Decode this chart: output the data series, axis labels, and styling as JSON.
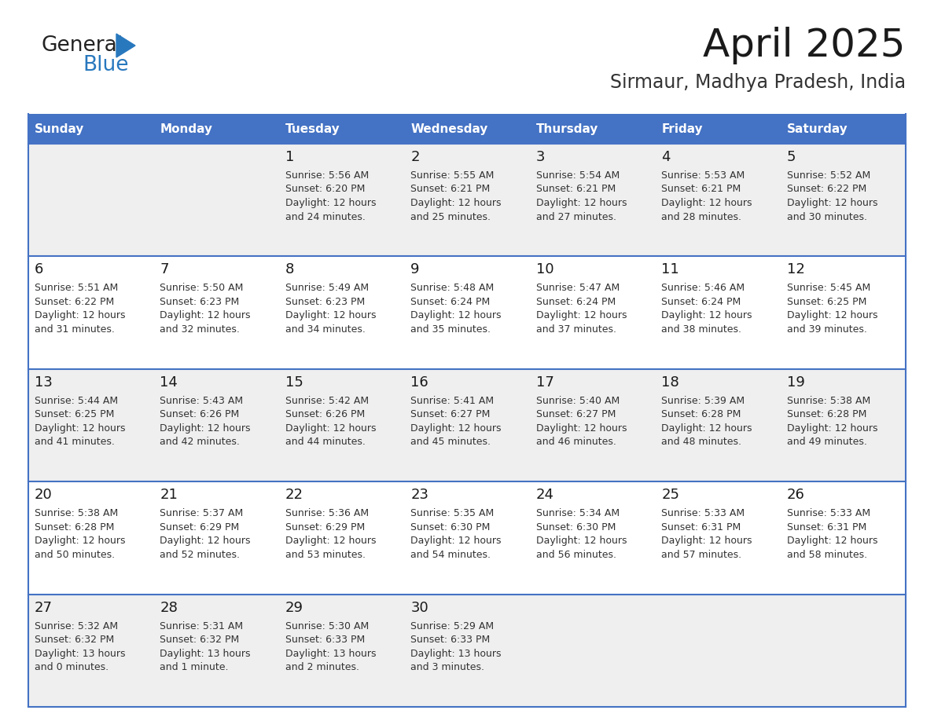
{
  "title": "April 2025",
  "subtitle": "Sirmaur, Madhya Pradesh, India",
  "days_of_week": [
    "Sunday",
    "Monday",
    "Tuesday",
    "Wednesday",
    "Thursday",
    "Friday",
    "Saturday"
  ],
  "header_bg": "#4472C4",
  "header_text_color": "#FFFFFF",
  "row_bg_even": "#EFEFEF",
  "row_bg_odd": "#FFFFFF",
  "cell_text_color": "#333333",
  "border_color": "#4472C4",
  "calendar_data": [
    [
      {
        "day": "",
        "info": ""
      },
      {
        "day": "",
        "info": ""
      },
      {
        "day": "1",
        "info": "Sunrise: 5:56 AM\nSunset: 6:20 PM\nDaylight: 12 hours\nand 24 minutes."
      },
      {
        "day": "2",
        "info": "Sunrise: 5:55 AM\nSunset: 6:21 PM\nDaylight: 12 hours\nand 25 minutes."
      },
      {
        "day": "3",
        "info": "Sunrise: 5:54 AM\nSunset: 6:21 PM\nDaylight: 12 hours\nand 27 minutes."
      },
      {
        "day": "4",
        "info": "Sunrise: 5:53 AM\nSunset: 6:21 PM\nDaylight: 12 hours\nand 28 minutes."
      },
      {
        "day": "5",
        "info": "Sunrise: 5:52 AM\nSunset: 6:22 PM\nDaylight: 12 hours\nand 30 minutes."
      }
    ],
    [
      {
        "day": "6",
        "info": "Sunrise: 5:51 AM\nSunset: 6:22 PM\nDaylight: 12 hours\nand 31 minutes."
      },
      {
        "day": "7",
        "info": "Sunrise: 5:50 AM\nSunset: 6:23 PM\nDaylight: 12 hours\nand 32 minutes."
      },
      {
        "day": "8",
        "info": "Sunrise: 5:49 AM\nSunset: 6:23 PM\nDaylight: 12 hours\nand 34 minutes."
      },
      {
        "day": "9",
        "info": "Sunrise: 5:48 AM\nSunset: 6:24 PM\nDaylight: 12 hours\nand 35 minutes."
      },
      {
        "day": "10",
        "info": "Sunrise: 5:47 AM\nSunset: 6:24 PM\nDaylight: 12 hours\nand 37 minutes."
      },
      {
        "day": "11",
        "info": "Sunrise: 5:46 AM\nSunset: 6:24 PM\nDaylight: 12 hours\nand 38 minutes."
      },
      {
        "day": "12",
        "info": "Sunrise: 5:45 AM\nSunset: 6:25 PM\nDaylight: 12 hours\nand 39 minutes."
      }
    ],
    [
      {
        "day": "13",
        "info": "Sunrise: 5:44 AM\nSunset: 6:25 PM\nDaylight: 12 hours\nand 41 minutes."
      },
      {
        "day": "14",
        "info": "Sunrise: 5:43 AM\nSunset: 6:26 PM\nDaylight: 12 hours\nand 42 minutes."
      },
      {
        "day": "15",
        "info": "Sunrise: 5:42 AM\nSunset: 6:26 PM\nDaylight: 12 hours\nand 44 minutes."
      },
      {
        "day": "16",
        "info": "Sunrise: 5:41 AM\nSunset: 6:27 PM\nDaylight: 12 hours\nand 45 minutes."
      },
      {
        "day": "17",
        "info": "Sunrise: 5:40 AM\nSunset: 6:27 PM\nDaylight: 12 hours\nand 46 minutes."
      },
      {
        "day": "18",
        "info": "Sunrise: 5:39 AM\nSunset: 6:28 PM\nDaylight: 12 hours\nand 48 minutes."
      },
      {
        "day": "19",
        "info": "Sunrise: 5:38 AM\nSunset: 6:28 PM\nDaylight: 12 hours\nand 49 minutes."
      }
    ],
    [
      {
        "day": "20",
        "info": "Sunrise: 5:38 AM\nSunset: 6:28 PM\nDaylight: 12 hours\nand 50 minutes."
      },
      {
        "day": "21",
        "info": "Sunrise: 5:37 AM\nSunset: 6:29 PM\nDaylight: 12 hours\nand 52 minutes."
      },
      {
        "day": "22",
        "info": "Sunrise: 5:36 AM\nSunset: 6:29 PM\nDaylight: 12 hours\nand 53 minutes."
      },
      {
        "day": "23",
        "info": "Sunrise: 5:35 AM\nSunset: 6:30 PM\nDaylight: 12 hours\nand 54 minutes."
      },
      {
        "day": "24",
        "info": "Sunrise: 5:34 AM\nSunset: 6:30 PM\nDaylight: 12 hours\nand 56 minutes."
      },
      {
        "day": "25",
        "info": "Sunrise: 5:33 AM\nSunset: 6:31 PM\nDaylight: 12 hours\nand 57 minutes."
      },
      {
        "day": "26",
        "info": "Sunrise: 5:33 AM\nSunset: 6:31 PM\nDaylight: 12 hours\nand 58 minutes."
      }
    ],
    [
      {
        "day": "27",
        "info": "Sunrise: 5:32 AM\nSunset: 6:32 PM\nDaylight: 13 hours\nand 0 minutes."
      },
      {
        "day": "28",
        "info": "Sunrise: 5:31 AM\nSunset: 6:32 PM\nDaylight: 13 hours\nand 1 minute."
      },
      {
        "day": "29",
        "info": "Sunrise: 5:30 AM\nSunset: 6:33 PM\nDaylight: 13 hours\nand 2 minutes."
      },
      {
        "day": "30",
        "info": "Sunrise: 5:29 AM\nSunset: 6:33 PM\nDaylight: 13 hours\nand 3 minutes."
      },
      {
        "day": "",
        "info": ""
      },
      {
        "day": "",
        "info": ""
      },
      {
        "day": "",
        "info": ""
      }
    ]
  ],
  "logo_general_color": "#222222",
  "logo_blue_color": "#2878BE",
  "logo_triangle_color": "#2878BE"
}
